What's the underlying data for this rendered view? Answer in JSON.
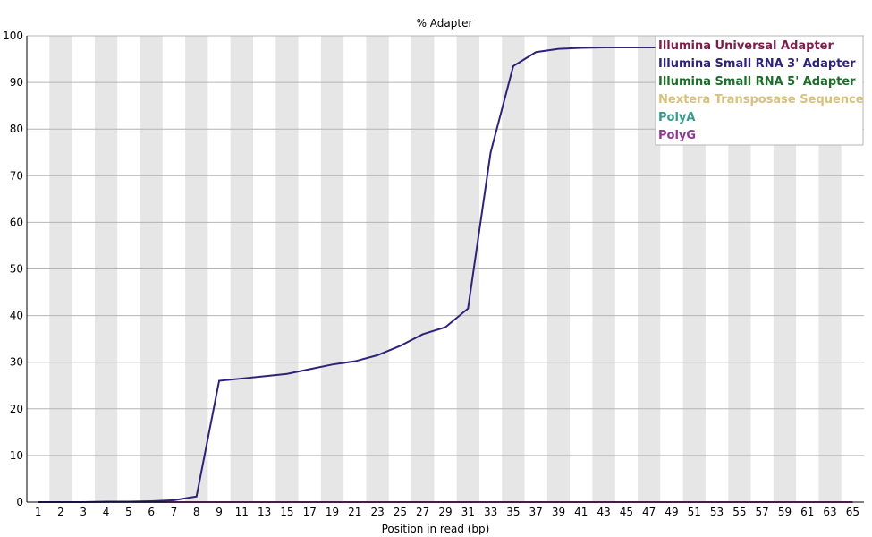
{
  "chart_data": {
    "type": "line",
    "title": "% Adapter",
    "xlabel": "Position in read (bp)",
    "ylabel": "",
    "ylim": [
      0,
      100
    ],
    "y_ticks": [
      0,
      10,
      20,
      30,
      40,
      50,
      60,
      70,
      80,
      90,
      100
    ],
    "x_tick_labels": [
      "1",
      "2",
      "3",
      "4",
      "5",
      "6",
      "7",
      "8",
      "9",
      "11",
      "13",
      "15",
      "17",
      "19",
      "21",
      "23",
      "25",
      "27",
      "29",
      "31",
      "33",
      "35",
      "37",
      "39",
      "41",
      "43",
      "45",
      "47",
      "49",
      "51",
      "53",
      "55",
      "57",
      "59",
      "61",
      "63",
      "65"
    ],
    "grid": "horizontal lines with alternating gray column bands",
    "legend_position": "top-right",
    "series": [
      {
        "name": "Illumina Universal Adapter",
        "color": "#7a1f4a",
        "values": [
          0,
          0,
          0,
          0,
          0,
          0,
          0,
          0,
          0,
          0,
          0,
          0,
          0,
          0,
          0,
          0,
          0,
          0,
          0,
          0,
          0,
          0,
          0,
          0,
          0,
          0,
          0,
          0,
          0,
          0,
          0,
          0,
          0,
          0,
          0,
          0,
          0
        ]
      },
      {
        "name": "Illumina Small RNA 3' Adapter",
        "color": "#2e2378",
        "values": [
          0,
          0,
          0,
          0.1,
          0.1,
          0.2,
          0.4,
          1.2,
          26,
          26.5,
          27,
          27.5,
          28.5,
          29.5,
          30.2,
          31.5,
          33.5,
          36,
          37.5,
          41.5,
          75,
          93.5,
          96.5,
          97.2,
          97.4,
          97.5,
          97.5,
          97.5,
          97.5,
          97.5,
          97.5,
          97.5,
          97.5,
          97.5,
          97.5,
          97.5,
          97.5
        ]
      },
      {
        "name": "Illumina Small RNA 5' Adapter",
        "color": "#1d6e2a",
        "values": [
          0,
          0,
          0,
          0,
          0,
          0,
          0,
          0,
          0,
          0,
          0,
          0,
          0,
          0,
          0,
          0,
          0,
          0,
          0,
          0,
          0,
          0,
          0,
          0,
          0,
          0,
          0,
          0,
          0,
          0,
          0,
          0,
          0,
          0,
          0,
          0,
          0
        ]
      },
      {
        "name": "Nextera Transposase Sequence",
        "color": "#d8c27a",
        "values": [
          0,
          0,
          0,
          0,
          0,
          0,
          0,
          0,
          0,
          0,
          0,
          0,
          0,
          0,
          0,
          0,
          0,
          0,
          0,
          0,
          0,
          0,
          0,
          0,
          0,
          0,
          0,
          0,
          0,
          0,
          0,
          0,
          0,
          0,
          0,
          0,
          0
        ]
      },
      {
        "name": "PolyA",
        "color": "#3a9a90",
        "values": [
          0,
          0,
          0,
          0,
          0,
          0,
          0,
          0,
          0,
          0,
          0,
          0,
          0,
          0,
          0,
          0,
          0,
          0,
          0,
          0,
          0,
          0,
          0,
          0,
          0,
          0,
          0,
          0,
          0,
          0,
          0,
          0,
          0,
          0,
          0,
          0,
          0
        ]
      },
      {
        "name": "PolyG",
        "color": "#8b3a8f",
        "values": [
          0,
          0,
          0,
          0,
          0,
          0,
          0,
          0,
          0,
          0,
          0,
          0,
          0,
          0,
          0,
          0,
          0,
          0,
          0,
          0,
          0,
          0,
          0,
          0,
          0,
          0,
          0,
          0,
          0,
          0,
          0,
          0,
          0,
          0,
          0,
          0,
          0
        ]
      }
    ]
  }
}
